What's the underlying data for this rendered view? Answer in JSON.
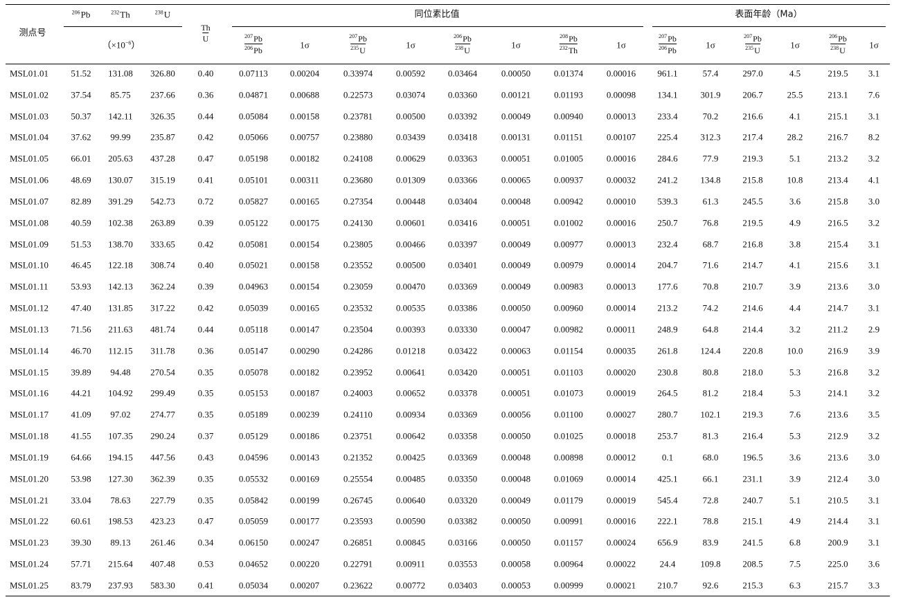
{
  "header": {
    "id": "测点号",
    "content_isotopes": [
      {
        "sup": "206",
        "el": "Pb"
      },
      {
        "sup": "232",
        "el": "Th"
      },
      {
        "sup": "238",
        "el": "U"
      }
    ],
    "content_unit": {
      "prefix": "（×10",
      "exponent": "−6",
      "suffix": "）"
    },
    "th_u": {
      "num": "Th",
      "den": "U"
    },
    "ratio_group": "同位素比值",
    "age_group": "表面年龄（Ma）",
    "ratio_columns": [
      {
        "num": {
          "sup": "207",
          "el": "Pb"
        },
        "den": {
          "sup": "206",
          "el": "Pb"
        }
      },
      {
        "label": "1σ"
      },
      {
        "num": {
          "sup": "207",
          "el": "Pb"
        },
        "den": {
          "sup": "235",
          "el": "U"
        }
      },
      {
        "label": "1σ"
      },
      {
        "num": {
          "sup": "206",
          "el": "Pb"
        },
        "den": {
          "sup": "238",
          "el": "U"
        }
      },
      {
        "label": "1σ"
      },
      {
        "num": {
          "sup": "208",
          "el": "Pb"
        },
        "den": {
          "sup": "232",
          "el": "Th"
        }
      },
      {
        "label": "1σ"
      }
    ],
    "age_columns": [
      {
        "num": {
          "sup": "207",
          "el": "Pb"
        },
        "den": {
          "sup": "206",
          "el": "Pb"
        }
      },
      {
        "label": "1σ"
      },
      {
        "num": {
          "sup": "207",
          "el": "Pb"
        },
        "den": {
          "sup": "235",
          "el": "U"
        }
      },
      {
        "label": "1σ"
      },
      {
        "num": {
          "sup": "206",
          "el": "Pb"
        },
        "den": {
          "sup": "238",
          "el": "U"
        }
      },
      {
        "label": "1σ"
      }
    ]
  },
  "table": {
    "rows": [
      [
        "MSL01.01",
        "51.52",
        "131.08",
        "326.80",
        "0.40",
        "0.07113",
        "0.00204",
        "0.33974",
        "0.00592",
        "0.03464",
        "0.00050",
        "0.01374",
        "0.00016",
        "961.1",
        "57.4",
        "297.0",
        "4.5",
        "219.5",
        "3.1"
      ],
      [
        "MSL01.02",
        "37.54",
        "85.75",
        "237.66",
        "0.36",
        "0.04871",
        "0.00688",
        "0.22573",
        "0.03074",
        "0.03360",
        "0.00121",
        "0.01193",
        "0.00098",
        "134.1",
        "301.9",
        "206.7",
        "25.5",
        "213.1",
        "7.6"
      ],
      [
        "MSL01.03",
        "50.37",
        "142.11",
        "326.35",
        "0.44",
        "0.05084",
        "0.00158",
        "0.23781",
        "0.00500",
        "0.03392",
        "0.00049",
        "0.00940",
        "0.00013",
        "233.4",
        "70.2",
        "216.6",
        "4.1",
        "215.1",
        "3.1"
      ],
      [
        "MSL01.04",
        "37.62",
        "99.99",
        "235.87",
        "0.42",
        "0.05066",
        "0.00757",
        "0.23880",
        "0.03439",
        "0.03418",
        "0.00131",
        "0.01151",
        "0.00107",
        "225.4",
        "312.3",
        "217.4",
        "28.2",
        "216.7",
        "8.2"
      ],
      [
        "MSL01.05",
        "66.01",
        "205.63",
        "437.28",
        "0.47",
        "0.05198",
        "0.00182",
        "0.24108",
        "0.00629",
        "0.03363",
        "0.00051",
        "0.01005",
        "0.00016",
        "284.6",
        "77.9",
        "219.3",
        "5.1",
        "213.2",
        "3.2"
      ],
      [
        "MSL01.06",
        "48.69",
        "130.07",
        "315.19",
        "0.41",
        "0.05101",
        "0.00311",
        "0.23680",
        "0.01309",
        "0.03366",
        "0.00065",
        "0.00937",
        "0.00032",
        "241.2",
        "134.8",
        "215.8",
        "10.8",
        "213.4",
        "4.1"
      ],
      [
        "MSL01.07",
        "82.89",
        "391.29",
        "542.73",
        "0.72",
        "0.05827",
        "0.00165",
        "0.27354",
        "0.00448",
        "0.03404",
        "0.00048",
        "0.00942",
        "0.00010",
        "539.3",
        "61.3",
        "245.5",
        "3.6",
        "215.8",
        "3.0"
      ],
      [
        "MSL01.08",
        "40.59",
        "102.38",
        "263.89",
        "0.39",
        "0.05122",
        "0.00175",
        "0.24130",
        "0.00601",
        "0.03416",
        "0.00051",
        "0.01002",
        "0.00016",
        "250.7",
        "76.8",
        "219.5",
        "4.9",
        "216.5",
        "3.2"
      ],
      [
        "MSL01.09",
        "51.53",
        "138.70",
        "333.65",
        "0.42",
        "0.05081",
        "0.00154",
        "0.23805",
        "0.00466",
        "0.03397",
        "0.00049",
        "0.00977",
        "0.00013",
        "232.4",
        "68.7",
        "216.8",
        "3.8",
        "215.4",
        "3.1"
      ],
      [
        "MSL01.10",
        "46.45",
        "122.18",
        "308.74",
        "0.40",
        "0.05021",
        "0.00158",
        "0.23552",
        "0.00500",
        "0.03401",
        "0.00049",
        "0.00979",
        "0.00014",
        "204.7",
        "71.6",
        "214.7",
        "4.1",
        "215.6",
        "3.1"
      ],
      [
        "MSL01.11",
        "53.93",
        "142.13",
        "362.24",
        "0.39",
        "0.04963",
        "0.00154",
        "0.23059",
        "0.00470",
        "0.03369",
        "0.00049",
        "0.00983",
        "0.00013",
        "177.6",
        "70.8",
        "210.7",
        "3.9",
        "213.6",
        "3.0"
      ],
      [
        "MSL01.12",
        "47.40",
        "131.85",
        "317.22",
        "0.42",
        "0.05039",
        "0.00165",
        "0.23532",
        "0.00535",
        "0.03386",
        "0.00050",
        "0.00960",
        "0.00014",
        "213.2",
        "74.2",
        "214.6",
        "4.4",
        "214.7",
        "3.1"
      ],
      [
        "MSL01.13",
        "71.56",
        "211.63",
        "481.74",
        "0.44",
        "0.05118",
        "0.00147",
        "0.23504",
        "0.00393",
        "0.03330",
        "0.00047",
        "0.00982",
        "0.00011",
        "248.9",
        "64.8",
        "214.4",
        "3.2",
        "211.2",
        "2.9"
      ],
      [
        "MSL01.14",
        "46.70",
        "112.15",
        "311.78",
        "0.36",
        "0.05147",
        "0.00290",
        "0.24286",
        "0.01218",
        "0.03422",
        "0.00063",
        "0.01154",
        "0.00035",
        "261.8",
        "124.4",
        "220.8",
        "10.0",
        "216.9",
        "3.9"
      ],
      [
        "MSL01.15",
        "39.89",
        "94.48",
        "270.54",
        "0.35",
        "0.05078",
        "0.00182",
        "0.23952",
        "0.00641",
        "0.03420",
        "0.00051",
        "0.01103",
        "0.00020",
        "230.8",
        "80.8",
        "218.0",
        "5.3",
        "216.8",
        "3.2"
      ],
      [
        "MSL01.16",
        "44.21",
        "104.92",
        "299.49",
        "0.35",
        "0.05153",
        "0.00187",
        "0.24003",
        "0.00652",
        "0.03378",
        "0.00051",
        "0.01073",
        "0.00019",
        "264.5",
        "81.2",
        "218.4",
        "5.3",
        "214.1",
        "3.2"
      ],
      [
        "MSL01.17",
        "41.09",
        "97.02",
        "274.77",
        "0.35",
        "0.05189",
        "0.00239",
        "0.24110",
        "0.00934",
        "0.03369",
        "0.00056",
        "0.01100",
        "0.00027",
        "280.7",
        "102.1",
        "219.3",
        "7.6",
        "213.6",
        "3.5"
      ],
      [
        "MSL01.18",
        "41.55",
        "107.35",
        "290.24",
        "0.37",
        "0.05129",
        "0.00186",
        "0.23751",
        "0.00642",
        "0.03358",
        "0.00050",
        "0.01025",
        "0.00018",
        "253.7",
        "81.3",
        "216.4",
        "5.3",
        "212.9",
        "3.2"
      ],
      [
        "MSL01.19",
        "64.66",
        "194.15",
        "447.56",
        "0.43",
        "0.04596",
        "0.00143",
        "0.21352",
        "0.00425",
        "0.03369",
        "0.00048",
        "0.00898",
        "0.00012",
        "0.1",
        "68.0",
        "196.5",
        "3.6",
        "213.6",
        "3.0"
      ],
      [
        "MSL01.20",
        "53.98",
        "127.30",
        "362.39",
        "0.35",
        "0.05532",
        "0.00169",
        "0.25554",
        "0.00485",
        "0.03350",
        "0.00048",
        "0.01069",
        "0.00014",
        "425.1",
        "66.1",
        "231.1",
        "3.9",
        "212.4",
        "3.0"
      ],
      [
        "MSL01.21",
        "33.04",
        "78.63",
        "227.79",
        "0.35",
        "0.05842",
        "0.00199",
        "0.26745",
        "0.00640",
        "0.03320",
        "0.00049",
        "0.01179",
        "0.00019",
        "545.4",
        "72.8",
        "240.7",
        "5.1",
        "210.5",
        "3.1"
      ],
      [
        "MSL01.22",
        "60.61",
        "198.53",
        "423.23",
        "0.47",
        "0.05059",
        "0.00177",
        "0.23593",
        "0.00590",
        "0.03382",
        "0.00050",
        "0.00991",
        "0.00016",
        "222.1",
        "78.8",
        "215.1",
        "4.9",
        "214.4",
        "3.1"
      ],
      [
        "MSL01.23",
        "39.30",
        "89.13",
        "261.46",
        "0.34",
        "0.06150",
        "0.00247",
        "0.26851",
        "0.00845",
        "0.03166",
        "0.00050",
        "0.01157",
        "0.00024",
        "656.9",
        "83.9",
        "241.5",
        "6.8",
        "200.9",
        "3.1"
      ],
      [
        "MSL01.24",
        "57.71",
        "215.64",
        "407.48",
        "0.53",
        "0.04652",
        "0.00220",
        "0.22791",
        "0.00911",
        "0.03553",
        "0.00058",
        "0.00964",
        "0.00022",
        "24.4",
        "109.8",
        "208.5",
        "7.5",
        "225.0",
        "3.6"
      ],
      [
        "MSL01.25",
        "83.79",
        "237.93",
        "583.30",
        "0.41",
        "0.05034",
        "0.00207",
        "0.23622",
        "0.00772",
        "0.03403",
        "0.00053",
        "0.00999",
        "0.00021",
        "210.7",
        "92.6",
        "215.3",
        "6.3",
        "215.7",
        "3.3"
      ]
    ]
  }
}
